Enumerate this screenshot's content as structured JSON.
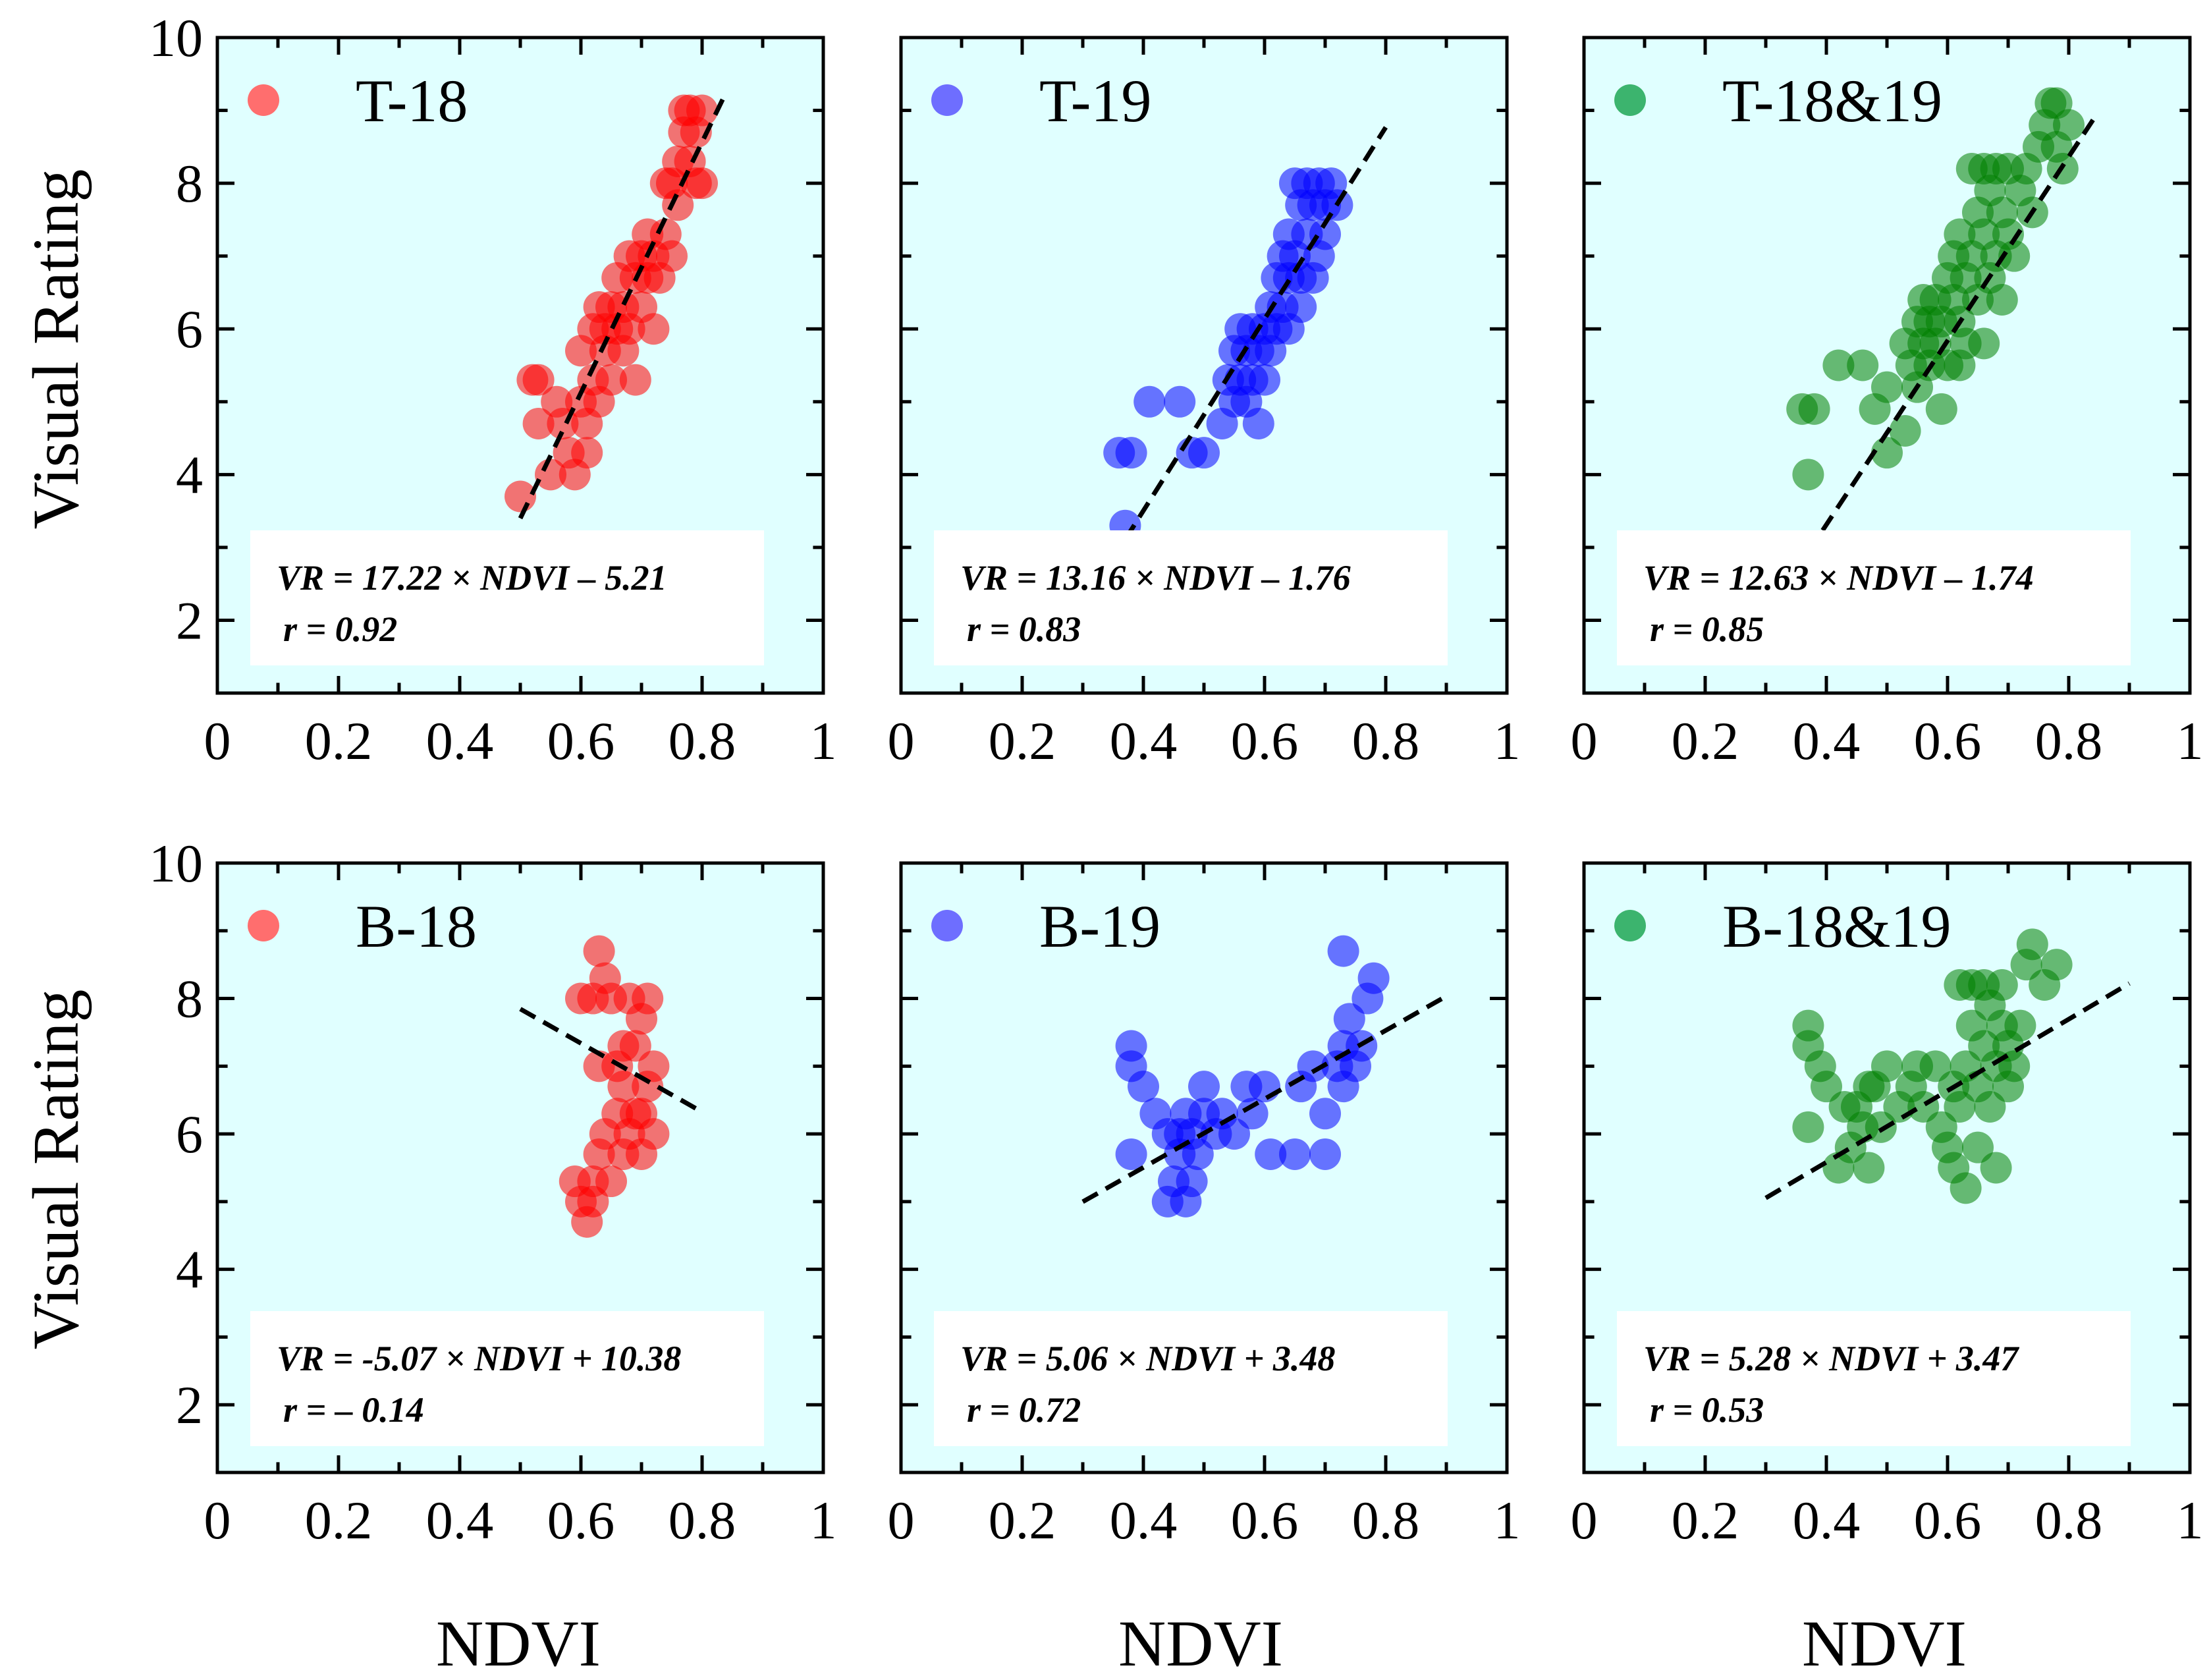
{
  "chart_data": [
    {
      "type": "scatter",
      "title": "T-18",
      "xlabel": "",
      "ylabel": "Visual Rating",
      "xlim": [
        0,
        1
      ],
      "ylim": [
        1,
        10
      ],
      "xticks": [
        "0",
        "0.2",
        "0.4",
        "0.6",
        "0.8",
        "1"
      ],
      "yticks": [
        "2",
        "4",
        "6",
        "8",
        "10"
      ],
      "color": "#ff0000",
      "legend_marker": "#ff6e6e",
      "fit": {
        "slope": 17.22,
        "intercept": -5.21,
        "x_range": [
          0.5,
          0.84
        ]
      },
      "equation": "VR = 17.22 × NDVI – 5.21",
      "r_text": "r = 0.92",
      "points": [
        [
          0.5,
          3.7
        ],
        [
          0.52,
          5.3
        ],
        [
          0.53,
          4.7
        ],
        [
          0.53,
          5.3
        ],
        [
          0.55,
          4.0
        ],
        [
          0.56,
          5.0
        ],
        [
          0.57,
          4.7
        ],
        [
          0.58,
          4.3
        ],
        [
          0.59,
          4.0
        ],
        [
          0.6,
          5.0
        ],
        [
          0.6,
          5.7
        ],
        [
          0.61,
          4.7
        ],
        [
          0.61,
          4.3
        ],
        [
          0.62,
          5.3
        ],
        [
          0.62,
          6.0
        ],
        [
          0.63,
          5.0
        ],
        [
          0.63,
          6.3
        ],
        [
          0.64,
          5.7
        ],
        [
          0.64,
          6.0
        ],
        [
          0.65,
          6.3
        ],
        [
          0.65,
          5.3
        ],
        [
          0.66,
          6.7
        ],
        [
          0.66,
          6.0
        ],
        [
          0.67,
          5.7
        ],
        [
          0.67,
          6.3
        ],
        [
          0.68,
          7.0
        ],
        [
          0.68,
          6.0
        ],
        [
          0.69,
          6.7
        ],
        [
          0.69,
          5.3
        ],
        [
          0.7,
          6.3
        ],
        [
          0.7,
          7.0
        ],
        [
          0.71,
          6.7
        ],
        [
          0.71,
          7.3
        ],
        [
          0.72,
          6.0
        ],
        [
          0.72,
          7.0
        ],
        [
          0.73,
          6.7
        ],
        [
          0.74,
          7.3
        ],
        [
          0.74,
          8.0
        ],
        [
          0.75,
          7.0
        ],
        [
          0.75,
          8.0
        ],
        [
          0.76,
          7.7
        ],
        [
          0.76,
          8.3
        ],
        [
          0.77,
          8.7
        ],
        [
          0.77,
          9.0
        ],
        [
          0.78,
          8.3
        ],
        [
          0.78,
          9.0
        ],
        [
          0.79,
          8.0
        ],
        [
          0.79,
          8.7
        ],
        [
          0.8,
          9.0
        ],
        [
          0.8,
          8.0
        ]
      ]
    },
    {
      "type": "scatter",
      "title": "T-19",
      "xlabel": "",
      "ylabel": "",
      "xlim": [
        0,
        1
      ],
      "ylim": [
        1,
        10
      ],
      "xticks": [
        "0",
        "0.2",
        "0.4",
        "0.6",
        "0.8",
        "1"
      ],
      "yticks": [],
      "color": "#0000ff",
      "legend_marker": "#6e6eff",
      "fit": {
        "slope": 13.16,
        "intercept": -1.76,
        "x_range": [
          0.37,
          0.8
        ]
      },
      "equation": "VR = 13.16 × NDVI – 1.76",
      "r_text": "r = 0.83",
      "points": [
        [
          0.37,
          3.3
        ],
        [
          0.36,
          4.3
        ],
        [
          0.38,
          4.3
        ],
        [
          0.41,
          5.0
        ],
        [
          0.46,
          5.0
        ],
        [
          0.48,
          4.3
        ],
        [
          0.5,
          4.3
        ],
        [
          0.53,
          4.7
        ],
        [
          0.54,
          5.3
        ],
        [
          0.55,
          5.7
        ],
        [
          0.55,
          5.0
        ],
        [
          0.56,
          5.3
        ],
        [
          0.56,
          6.0
        ],
        [
          0.57,
          5.7
        ],
        [
          0.57,
          5.0
        ],
        [
          0.58,
          5.3
        ],
        [
          0.58,
          6.0
        ],
        [
          0.59,
          5.7
        ],
        [
          0.59,
          4.7
        ],
        [
          0.6,
          6.0
        ],
        [
          0.6,
          5.3
        ],
        [
          0.61,
          6.3
        ],
        [
          0.61,
          5.7
        ],
        [
          0.62,
          6.0
        ],
        [
          0.62,
          6.7
        ],
        [
          0.63,
          6.3
        ],
        [
          0.63,
          7.0
        ],
        [
          0.64,
          6.7
        ],
        [
          0.64,
          7.3
        ],
        [
          0.65,
          7.0
        ],
        [
          0.65,
          8.0
        ],
        [
          0.66,
          7.7
        ],
        [
          0.66,
          6.3
        ],
        [
          0.67,
          7.3
        ],
        [
          0.67,
          8.0
        ],
        [
          0.68,
          7.7
        ],
        [
          0.68,
          6.7
        ],
        [
          0.69,
          7.0
        ],
        [
          0.69,
          8.0
        ],
        [
          0.7,
          7.7
        ],
        [
          0.7,
          7.3
        ],
        [
          0.71,
          8.0
        ],
        [
          0.72,
          7.7
        ],
        [
          0.66,
          6.7
        ],
        [
          0.64,
          6.0
        ]
      ]
    },
    {
      "type": "scatter",
      "title": "T-18&19",
      "xlabel": "",
      "ylabel": "",
      "xlim": [
        0,
        1
      ],
      "ylim": [
        1,
        10
      ],
      "xticks": [
        "0",
        "0.2",
        "0.4",
        "0.6",
        "0.8",
        "1"
      ],
      "yticks": [],
      "color": "#008000",
      "legend_marker": "#3cb46e",
      "fit": {
        "slope": 12.63,
        "intercept": -1.74,
        "x_range": [
          0.37,
          0.84
        ]
      },
      "equation": "VR = 12.63 × NDVI – 1.74",
      "r_text": "r = 0.85",
      "points": [
        [
          0.37,
          4.0
        ],
        [
          0.36,
          4.9
        ],
        [
          0.38,
          4.9
        ],
        [
          0.42,
          5.5
        ],
        [
          0.46,
          5.5
        ],
        [
          0.48,
          4.9
        ],
        [
          0.5,
          4.3
        ],
        [
          0.5,
          5.2
        ],
        [
          0.53,
          4.6
        ],
        [
          0.53,
          5.8
        ],
        [
          0.54,
          5.5
        ],
        [
          0.55,
          5.2
        ],
        [
          0.55,
          6.1
        ],
        [
          0.56,
          5.8
        ],
        [
          0.56,
          6.4
        ],
        [
          0.57,
          5.5
        ],
        [
          0.57,
          6.1
        ],
        [
          0.58,
          5.8
        ],
        [
          0.58,
          6.4
        ],
        [
          0.59,
          4.9
        ],
        [
          0.59,
          6.1
        ],
        [
          0.6,
          5.5
        ],
        [
          0.6,
          6.7
        ],
        [
          0.61,
          6.4
        ],
        [
          0.61,
          7.0
        ],
        [
          0.62,
          6.1
        ],
        [
          0.62,
          7.3
        ],
        [
          0.63,
          5.8
        ],
        [
          0.63,
          6.7
        ],
        [
          0.64,
          7.0
        ],
        [
          0.64,
          8.2
        ],
        [
          0.65,
          6.4
        ],
        [
          0.65,
          7.6
        ],
        [
          0.66,
          7.3
        ],
        [
          0.66,
          8.2
        ],
        [
          0.67,
          6.7
        ],
        [
          0.67,
          7.9
        ],
        [
          0.68,
          7.0
        ],
        [
          0.68,
          8.2
        ],
        [
          0.69,
          7.6
        ],
        [
          0.69,
          6.4
        ],
        [
          0.7,
          7.3
        ],
        [
          0.7,
          8.2
        ],
        [
          0.71,
          7.0
        ],
        [
          0.72,
          7.9
        ],
        [
          0.73,
          8.2
        ],
        [
          0.74,
          7.6
        ],
        [
          0.75,
          8.5
        ],
        [
          0.76,
          8.8
        ],
        [
          0.77,
          9.1
        ],
        [
          0.78,
          8.5
        ],
        [
          0.78,
          9.1
        ],
        [
          0.79,
          8.2
        ],
        [
          0.8,
          8.8
        ],
        [
          0.66,
          5.8
        ],
        [
          0.62,
          5.5
        ]
      ]
    },
    {
      "type": "scatter",
      "title": "B-18",
      "xlabel": "NDVI",
      "ylabel": "Visual Rating",
      "xlim": [
        0,
        1
      ],
      "ylim": [
        1,
        10
      ],
      "xticks": [
        "0",
        "0.2",
        "0.4",
        "0.6",
        "0.8",
        "1"
      ],
      "yticks": [
        "2",
        "4",
        "6",
        "8",
        "10"
      ],
      "color": "#ff0000",
      "legend_marker": "#ff6e6e",
      "fit": {
        "slope": -5.07,
        "intercept": 10.38,
        "x_range": [
          0.5,
          0.8
        ]
      },
      "equation": "VR = -5.07 × NDVI + 10.38",
      "r_text": "r = – 0.14",
      "points": [
        [
          0.59,
          5.3
        ],
        [
          0.6,
          5.0
        ],
        [
          0.61,
          4.7
        ],
        [
          0.62,
          5.3
        ],
        [
          0.62,
          5.0
        ],
        [
          0.63,
          5.7
        ],
        [
          0.63,
          8.7
        ],
        [
          0.64,
          8.3
        ],
        [
          0.64,
          6.0
        ],
        [
          0.65,
          5.3
        ],
        [
          0.65,
          8.0
        ],
        [
          0.66,
          7.0
        ],
        [
          0.66,
          6.3
        ],
        [
          0.67,
          5.7
        ],
        [
          0.67,
          6.7
        ],
        [
          0.68,
          8.0
        ],
        [
          0.68,
          6.0
        ],
        [
          0.69,
          7.3
        ],
        [
          0.69,
          6.3
        ],
        [
          0.7,
          7.7
        ],
        [
          0.7,
          5.7
        ],
        [
          0.71,
          6.7
        ],
        [
          0.71,
          8.0
        ],
        [
          0.72,
          6.0
        ],
        [
          0.72,
          7.0
        ],
        [
          0.6,
          8.0
        ],
        [
          0.62,
          8.0
        ],
        [
          0.63,
          7.0
        ],
        [
          0.67,
          7.3
        ],
        [
          0.7,
          6.3
        ]
      ]
    },
    {
      "type": "scatter",
      "title": "B-19",
      "xlabel": "NDVI",
      "ylabel": "",
      "xlim": [
        0,
        1
      ],
      "ylim": [
        1,
        10
      ],
      "xticks": [
        "0",
        "0.2",
        "0.4",
        "0.6",
        "0.8",
        "1"
      ],
      "yticks": [],
      "color": "#0000ff",
      "legend_marker": "#6e6eff",
      "fit": {
        "slope": 5.06,
        "intercept": 3.48,
        "x_range": [
          0.3,
          0.9
        ]
      },
      "equation": "VR = 5.06 × NDVI + 3.48",
      "r_text": "r = 0.72",
      "points": [
        [
          0.38,
          7.3
        ],
        [
          0.38,
          7.0
        ],
        [
          0.38,
          5.7
        ],
        [
          0.4,
          6.7
        ],
        [
          0.42,
          6.3
        ],
        [
          0.44,
          5.0
        ],
        [
          0.44,
          6.0
        ],
        [
          0.45,
          5.3
        ],
        [
          0.46,
          6.0
        ],
        [
          0.46,
          5.7
        ],
        [
          0.47,
          6.3
        ],
        [
          0.47,
          5.0
        ],
        [
          0.48,
          5.3
        ],
        [
          0.48,
          6.0
        ],
        [
          0.49,
          5.7
        ],
        [
          0.5,
          6.7
        ],
        [
          0.5,
          6.3
        ],
        [
          0.52,
          6.0
        ],
        [
          0.53,
          6.3
        ],
        [
          0.55,
          6.0
        ],
        [
          0.57,
          6.7
        ],
        [
          0.58,
          6.3
        ],
        [
          0.6,
          6.7
        ],
        [
          0.61,
          5.7
        ],
        [
          0.65,
          5.7
        ],
        [
          0.66,
          6.7
        ],
        [
          0.68,
          7.0
        ],
        [
          0.7,
          6.3
        ],
        [
          0.7,
          5.7
        ],
        [
          0.72,
          7.0
        ],
        [
          0.73,
          6.7
        ],
        [
          0.73,
          7.3
        ],
        [
          0.74,
          7.7
        ],
        [
          0.75,
          7.0
        ],
        [
          0.76,
          7.3
        ],
        [
          0.77,
          8.0
        ],
        [
          0.78,
          8.3
        ],
        [
          0.73,
          8.7
        ]
      ]
    },
    {
      "type": "scatter",
      "title": "B-18&19",
      "xlabel": "NDVI",
      "ylabel": "",
      "xlim": [
        0,
        1
      ],
      "ylim": [
        1,
        10
      ],
      "xticks": [
        "0",
        "0.2",
        "0.4",
        "0.6",
        "0.8",
        "1"
      ],
      "yticks": [],
      "color": "#008000",
      "legend_marker": "#3cb46e",
      "fit": {
        "slope": 5.28,
        "intercept": 3.47,
        "x_range": [
          0.3,
          0.9
        ]
      },
      "equation": "VR = 5.28 × NDVI + 3.47",
      "r_text": "r = 0.53",
      "points": [
        [
          0.37,
          7.6
        ],
        [
          0.37,
          7.3
        ],
        [
          0.37,
          6.1
        ],
        [
          0.39,
          7.0
        ],
        [
          0.4,
          6.7
        ],
        [
          0.42,
          5.5
        ],
        [
          0.43,
          6.4
        ],
        [
          0.44,
          5.8
        ],
        [
          0.45,
          6.4
        ],
        [
          0.46,
          6.1
        ],
        [
          0.47,
          6.7
        ],
        [
          0.47,
          5.5
        ],
        [
          0.48,
          6.7
        ],
        [
          0.49,
          6.1
        ],
        [
          0.5,
          7.0
        ],
        [
          0.52,
          6.4
        ],
        [
          0.54,
          6.7
        ],
        [
          0.55,
          7.0
        ],
        [
          0.56,
          6.4
        ],
        [
          0.58,
          7.0
        ],
        [
          0.59,
          6.1
        ],
        [
          0.6,
          5.8
        ],
        [
          0.61,
          6.7
        ],
        [
          0.61,
          5.5
        ],
        [
          0.62,
          8.2
        ],
        [
          0.62,
          6.4
        ],
        [
          0.63,
          7.0
        ],
        [
          0.63,
          5.2
        ],
        [
          0.64,
          7.6
        ],
        [
          0.64,
          8.2
        ],
        [
          0.65,
          6.7
        ],
        [
          0.65,
          5.8
        ],
        [
          0.66,
          7.3
        ],
        [
          0.66,
          8.2
        ],
        [
          0.67,
          6.4
        ],
        [
          0.67,
          7.9
        ],
        [
          0.68,
          7.0
        ],
        [
          0.68,
          5.5
        ],
        [
          0.69,
          7.6
        ],
        [
          0.69,
          8.2
        ],
        [
          0.7,
          6.7
        ],
        [
          0.7,
          7.3
        ],
        [
          0.71,
          7.0
        ],
        [
          0.72,
          7.6
        ],
        [
          0.73,
          8.5
        ],
        [
          0.74,
          8.8
        ],
        [
          0.76,
          8.2
        ],
        [
          0.78,
          8.5
        ]
      ]
    }
  ]
}
